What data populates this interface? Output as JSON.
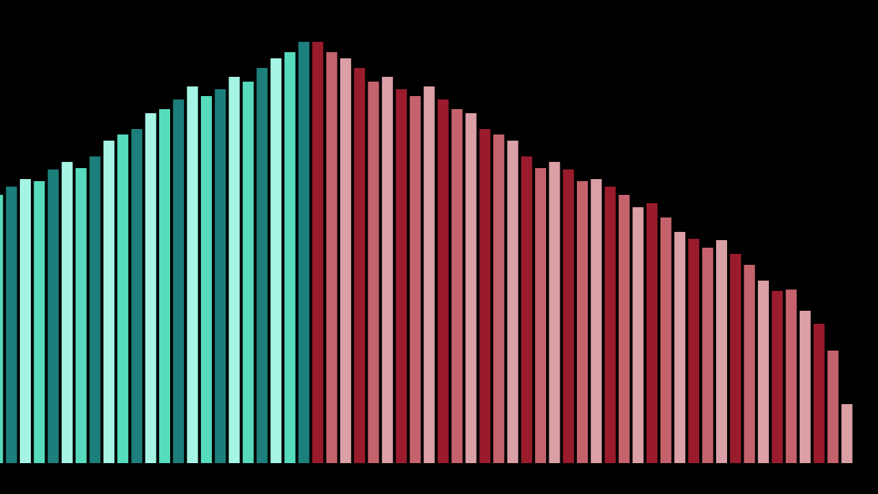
{
  "chart_data": {
    "type": "bar",
    "title": "",
    "xlabel": "",
    "ylabel": "",
    "grid": false,
    "legend": "none",
    "ylim": [
      0,
      620
    ],
    "background": "#000000",
    "palette": {
      "teal": [
        "#1c7f7b",
        "#56dbbd",
        "#a6f5e4"
      ],
      "red": [
        "#9a1c2c",
        "#c5636c",
        "#daa0a5"
      ]
    },
    "values": [
      391,
      403,
      414,
      411,
      428,
      439,
      430,
      447,
      470,
      479,
      487,
      510,
      516,
      530,
      549,
      535,
      545,
      563,
      556,
      576,
      590,
      599,
      614,
      614,
      599,
      590,
      576,
      556,
      563,
      545,
      535,
      549,
      530,
      516,
      510,
      487,
      479,
      470,
      447,
      430,
      439,
      428,
      411,
      414,
      403,
      391,
      373,
      379,
      358,
      337,
      327,
      314,
      325,
      305,
      289,
      266,
      251,
      253,
      222,
      203,
      164,
      86
    ],
    "colors": [
      "#56dbbd",
      "#1c7f7b",
      "#a6f5e4",
      "#56dbbd",
      "#1c7f7b",
      "#a6f5e4",
      "#56dbbd",
      "#1c7f7b",
      "#a6f5e4",
      "#56dbbd",
      "#1c7f7b",
      "#a6f5e4",
      "#56dbbd",
      "#1c7f7b",
      "#a6f5e4",
      "#56dbbd",
      "#1c7f7b",
      "#a6f5e4",
      "#56dbbd",
      "#1c7f7b",
      "#a6f5e4",
      "#56dbbd",
      "#1c7f7b",
      "#9a1c2c",
      "#c5636c",
      "#daa0a5",
      "#9a1c2c",
      "#c5636c",
      "#daa0a5",
      "#9a1c2c",
      "#c5636c",
      "#daa0a5",
      "#9a1c2c",
      "#c5636c",
      "#daa0a5",
      "#9a1c2c",
      "#c5636c",
      "#daa0a5",
      "#9a1c2c",
      "#c5636c",
      "#daa0a5",
      "#9a1c2c",
      "#c5636c",
      "#daa0a5",
      "#9a1c2c",
      "#c5636c",
      "#daa0a5",
      "#9a1c2c",
      "#c5636c",
      "#daa0a5",
      "#9a1c2c",
      "#c5636c",
      "#daa0a5",
      "#9a1c2c",
      "#c5636c",
      "#daa0a5",
      "#9a1c2c",
      "#c5636c",
      "#daa0a5",
      "#9a1c2c",
      "#c5636c",
      "#daa0a5"
    ]
  }
}
